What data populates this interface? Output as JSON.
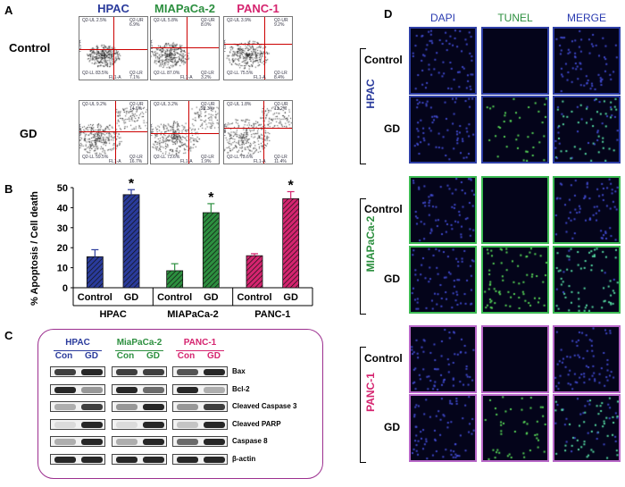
{
  "panels": {
    "A": "A",
    "B": "B",
    "C": "C",
    "D": "D"
  },
  "cell_lines": [
    {
      "name": "HPAC",
      "color": "#2a3b9c"
    },
    {
      "name": "MIAPaCa-2",
      "color": "#2c8f3f"
    },
    {
      "name": "PANC-1",
      "color": "#d5246f"
    }
  ],
  "conditions": [
    "Control",
    "GD"
  ],
  "flow": {
    "quadrant_labels": {
      "ul": "Q2-UL",
      "ur": "Q2-UR",
      "ll": "Q2-LL",
      "lr": "Q2-LR"
    },
    "axis_x": "FL1-A",
    "axis_y": "FL3-A",
    "values": [
      {
        "ul": "2.5%",
        "ur": "6.9%",
        "ll": "83.5%",
        "lr": "7.1%"
      },
      {
        "ul": "5.8%",
        "ur": "8.0%",
        "ll": "87.0%",
        "lr": "3.2%"
      },
      {
        "ul": "3.9%",
        "ur": "9.2%",
        "ll": "75.5%",
        "lr": "8.4%"
      },
      {
        "ul": "9.2%",
        "ur": "14.6%",
        "ll": "59.5%",
        "lr": "16.7%"
      },
      {
        "ul": "3.2%",
        "ur": "21.3%",
        "ll": "73.6%",
        "lr": "1.9%"
      },
      {
        "ul": "1.8%",
        "ur": "13.2%",
        "ll": "73.6%",
        "lr": "11.4%"
      }
    ]
  },
  "chart_data": {
    "type": "bar",
    "ylabel": "% Apoptosis / Cell death",
    "ylim": [
      0,
      50
    ],
    "yticks": [
      0,
      10,
      20,
      30,
      40,
      50
    ],
    "groups": [
      "HPAC",
      "MIAPaCa-2",
      "PANC-1"
    ],
    "categories": [
      "Control",
      "GD",
      "Control",
      "GD",
      "Control",
      "GD"
    ],
    "values": [
      15.5,
      46.5,
      8.5,
      37.5,
      16.0,
      44.5
    ],
    "errors": [
      3.5,
      2.5,
      3.5,
      4.5,
      1.0,
      3.5
    ],
    "significance": [
      "",
      "*",
      "",
      "*",
      "",
      "*"
    ],
    "colors": [
      "#2a3b9c",
      "#2a3b9c",
      "#2c8f3f",
      "#2c8f3f",
      "#d5246f",
      "#d5246f"
    ],
    "gd_hatched": true
  },
  "western": {
    "groups": [
      "HPAC",
      "MiaPaCa-2",
      "PANC-1"
    ],
    "lane_labels": [
      "Con",
      "GD"
    ],
    "proteins": [
      "Bax",
      "Bcl-2",
      "Cleaved Caspase 3",
      "Cleaved PARP",
      "Caspase 8",
      "β-actin"
    ]
  },
  "fluor": {
    "channels": [
      "DAPI",
      "TUNEL",
      "MERGE"
    ],
    "channel_colors": [
      "#2a3bb0",
      "#2c8f3f",
      "#2a3bb0"
    ]
  }
}
